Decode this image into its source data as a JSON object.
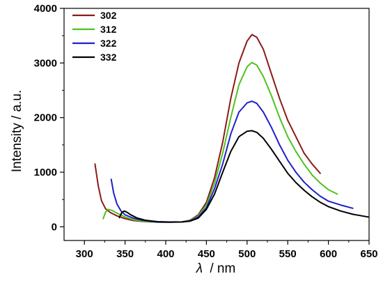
{
  "chart_data": {
    "type": "line",
    "xlabel": "/ nm",
    "xlabel_symbol": "λ",
    "ylabel": "Intensity / a.u.",
    "xlim": [
      275,
      650
    ],
    "ylim": [
      -250,
      4000
    ],
    "xticks": [
      300,
      350,
      400,
      450,
      500,
      550,
      600,
      650
    ],
    "yticks": [
      0,
      1000,
      2000,
      3000,
      4000
    ],
    "grid": false,
    "legend_position": "top-left",
    "series": [
      {
        "name": "302",
        "color": "#8b1a1a",
        "points": [
          [
            313,
            1150
          ],
          [
            317,
            750
          ],
          [
            321,
            480
          ],
          [
            326,
            330
          ],
          [
            332,
            260
          ],
          [
            340,
            200
          ],
          [
            350,
            150
          ],
          [
            360,
            115
          ],
          [
            375,
            95
          ],
          [
            390,
            85
          ],
          [
            405,
            85
          ],
          [
            420,
            90
          ],
          [
            430,
            120
          ],
          [
            440,
            220
          ],
          [
            450,
            450
          ],
          [
            460,
            900
          ],
          [
            470,
            1550
          ],
          [
            480,
            2350
          ],
          [
            490,
            3000
          ],
          [
            500,
            3400
          ],
          [
            506,
            3520
          ],
          [
            512,
            3470
          ],
          [
            520,
            3250
          ],
          [
            530,
            2800
          ],
          [
            540,
            2350
          ],
          [
            550,
            1950
          ],
          [
            560,
            1650
          ],
          [
            570,
            1350
          ],
          [
            580,
            1150
          ],
          [
            590,
            980
          ]
        ]
      },
      {
        "name": "312",
        "color": "#4fc21f",
        "points": [
          [
            323,
            150
          ],
          [
            326,
            270
          ],
          [
            329,
            320
          ],
          [
            334,
            300
          ],
          [
            340,
            250
          ],
          [
            350,
            180
          ],
          [
            360,
            130
          ],
          [
            375,
            100
          ],
          [
            390,
            85
          ],
          [
            405,
            85
          ],
          [
            420,
            90
          ],
          [
            430,
            115
          ],
          [
            440,
            200
          ],
          [
            450,
            400
          ],
          [
            460,
            800
          ],
          [
            470,
            1350
          ],
          [
            480,
            2000
          ],
          [
            490,
            2600
          ],
          [
            500,
            2930
          ],
          [
            506,
            3010
          ],
          [
            512,
            2960
          ],
          [
            520,
            2750
          ],
          [
            530,
            2400
          ],
          [
            540,
            2000
          ],
          [
            550,
            1650
          ],
          [
            560,
            1380
          ],
          [
            570,
            1150
          ],
          [
            580,
            950
          ],
          [
            590,
            800
          ],
          [
            600,
            680
          ],
          [
            611,
            600
          ]
        ]
      },
      {
        "name": "322",
        "color": "#1f1fcc",
        "points": [
          [
            333,
            870
          ],
          [
            336,
            620
          ],
          [
            340,
            420
          ],
          [
            345,
            290
          ],
          [
            350,
            220
          ],
          [
            360,
            160
          ],
          [
            370,
            125
          ],
          [
            380,
            105
          ],
          [
            390,
            90
          ],
          [
            405,
            85
          ],
          [
            420,
            90
          ],
          [
            430,
            110
          ],
          [
            440,
            180
          ],
          [
            450,
            350
          ],
          [
            460,
            700
          ],
          [
            470,
            1150
          ],
          [
            480,
            1700
          ],
          [
            490,
            2100
          ],
          [
            500,
            2270
          ],
          [
            506,
            2300
          ],
          [
            512,
            2260
          ],
          [
            520,
            2100
          ],
          [
            530,
            1820
          ],
          [
            540,
            1500
          ],
          [
            550,
            1220
          ],
          [
            560,
            1000
          ],
          [
            570,
            820
          ],
          [
            580,
            680
          ],
          [
            590,
            560
          ],
          [
            600,
            470
          ],
          [
            615,
            400
          ],
          [
            630,
            340
          ]
        ]
      },
      {
        "name": "332",
        "color": "#000000",
        "points": [
          [
            343,
            170
          ],
          [
            346,
            260
          ],
          [
            349,
            290
          ],
          [
            352,
            270
          ],
          [
            357,
            220
          ],
          [
            365,
            160
          ],
          [
            375,
            120
          ],
          [
            390,
            95
          ],
          [
            405,
            88
          ],
          [
            420,
            90
          ],
          [
            430,
            105
          ],
          [
            440,
            160
          ],
          [
            450,
            320
          ],
          [
            460,
            600
          ],
          [
            470,
            1000
          ],
          [
            480,
            1380
          ],
          [
            490,
            1650
          ],
          [
            500,
            1750
          ],
          [
            506,
            1760
          ],
          [
            512,
            1730
          ],
          [
            520,
            1620
          ],
          [
            530,
            1420
          ],
          [
            540,
            1200
          ],
          [
            550,
            980
          ],
          [
            560,
            810
          ],
          [
            570,
            670
          ],
          [
            580,
            550
          ],
          [
            590,
            450
          ],
          [
            600,
            370
          ],
          [
            615,
            290
          ],
          [
            630,
            230
          ],
          [
            649,
            180
          ]
        ]
      }
    ]
  }
}
